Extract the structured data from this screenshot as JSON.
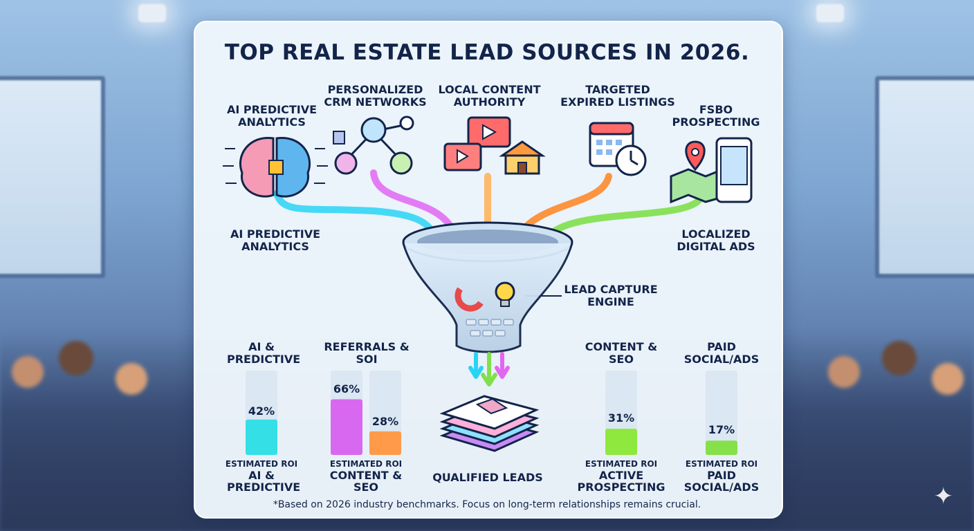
{
  "title": "TOP REAL ESTATE LEAD SOURCES IN 2026.",
  "sources": [
    {
      "label": "AI PREDICTIVE ANALYTICS",
      "icon": "brain-chip-icon",
      "color": "#29d3f5"
    },
    {
      "label": "PERSONALIZED CRM NETWORKS",
      "icon": "network-people-icon",
      "color": "#e266f2"
    },
    {
      "label": "LOCAL CONTENT AUTHORITY",
      "icon": "video-school-icon",
      "color": "#ff9a3c"
    },
    {
      "label": "TARGETED EXPIRED LISTINGS",
      "icon": "calendar-clock-icon",
      "color": "#ff8a2a"
    },
    {
      "label": "FSBO PROSPECTING",
      "icon": "map-phone-icon",
      "color": "#7fe04a"
    }
  ],
  "side_labels": {
    "left": "AI PREDICTIVE ANALYTICS",
    "right": "LOCALIZED DIGITAL ADS",
    "funnel": "LEAD CAPTURE ENGINE",
    "output": "QUALIFIED LEADS"
  },
  "chart_data": {
    "type": "bar",
    "groups": [
      {
        "label": "AI & PREDICTIVE",
        "bars": [
          {
            "value": 42,
            "display": "42%",
            "color": "#34e0e6"
          }
        ],
        "roi_caption": "ESTIMATED ROI",
        "roi_label": "AI & PREDICTIVE"
      },
      {
        "label": "REFERRALS & SOI",
        "bars": [
          {
            "value": 66,
            "display": "66%",
            "color": "#d868f0"
          },
          {
            "value": 28,
            "display": "28%",
            "color": "#ff9a4a"
          }
        ],
        "roi_caption": "ESTIMATED ROI",
        "roi_label": "CONTENT & SEO"
      },
      {
        "label": "CONTENT & SEO",
        "bars": [
          {
            "value": 31,
            "display": "31%",
            "color": "#8fe83e"
          }
        ],
        "roi_caption": "ESTIMATED ROI",
        "roi_label": "ACTIVE PROSPECTING"
      },
      {
        "label": "PAID SOCIAL/ADS",
        "bars": [
          {
            "value": 17,
            "display": "17%",
            "color": "#86e04a"
          }
        ],
        "roi_caption": "ESTIMATED ROI",
        "roi_label": "PAID SOCIAL/ADS"
      }
    ],
    "ylim": [
      0,
      100
    ]
  },
  "footnote": "*Based on 2026 industry benchmarks. Focus on long-term relationships remains crucial.",
  "colors": {
    "ink": "#13244a",
    "card": "#eef6fc",
    "track": "#dde9f3"
  }
}
